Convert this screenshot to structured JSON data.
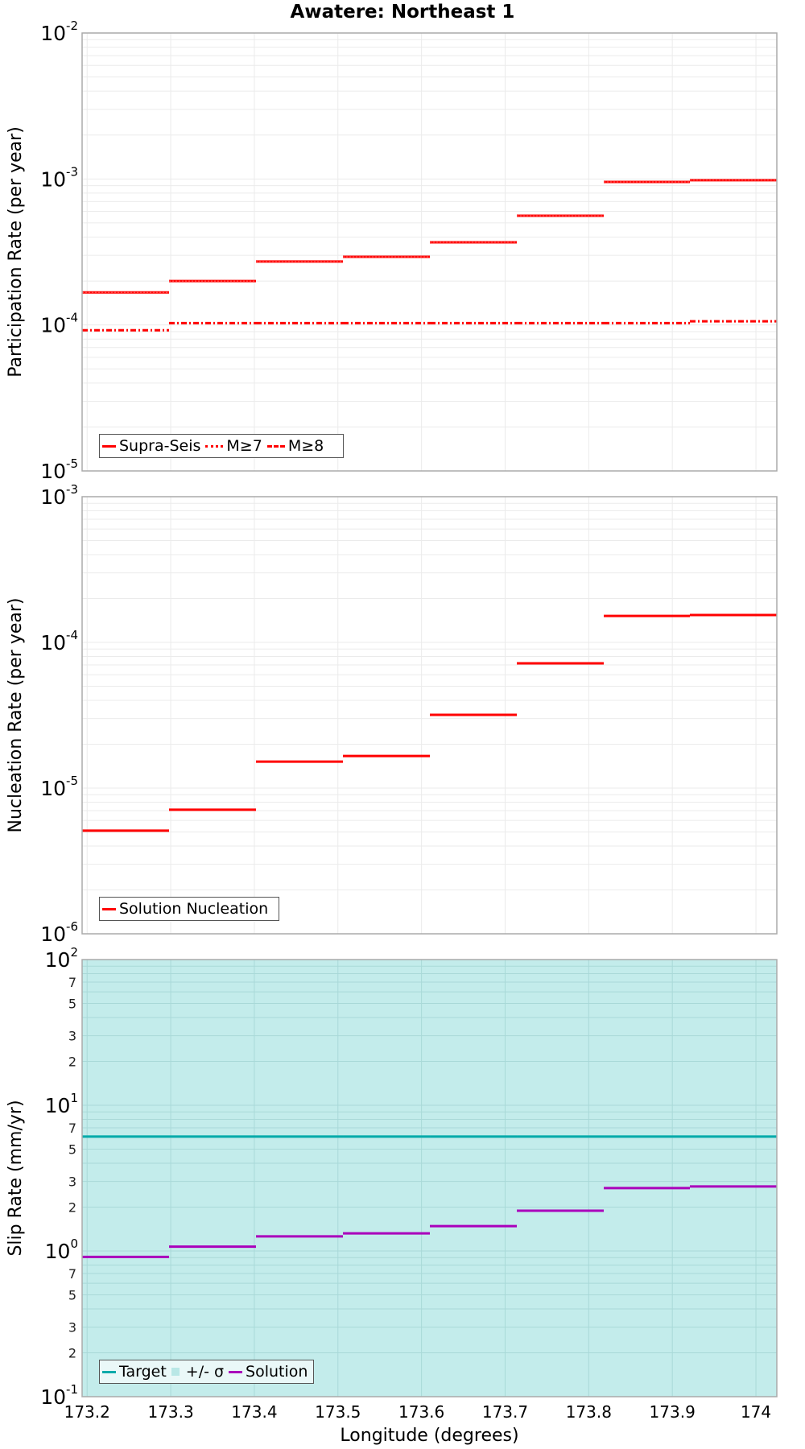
{
  "title": "Awatere: Northeast 1",
  "chart_data": [
    {
      "type": "line",
      "style": "step",
      "title": "Awatere: Northeast 1",
      "xlabel": "",
      "ylabel": "Participation Rate (per year)",
      "yscale": "log",
      "ylim": [
        1e-05,
        0.01
      ],
      "xlim": [
        173.194,
        174.025
      ],
      "grid": true,
      "legend_position": "lower left",
      "x_edges": [
        173.194,
        173.298,
        173.402,
        173.506,
        173.61,
        173.714,
        173.818,
        173.921,
        174.025
      ],
      "series": [
        {
          "name": "Supra-Seis",
          "color": "#ff0000",
          "dash": "solid",
          "values": [
            0.000167,
            0.0002,
            0.000272,
            0.000293,
            0.000368,
            0.00056,
            0.000955,
            0.00098
          ]
        },
        {
          "name": "M≥7",
          "color": "#ff0000",
          "dash": "dotted",
          "values": [
            0.000167,
            0.0002,
            0.000272,
            0.000293,
            0.000368,
            0.00056,
            0.000955,
            0.00098
          ]
        },
        {
          "name": "M≥8",
          "color": "#ff0000",
          "dash": "dashdot",
          "values": [
            9.2e-05,
            0.000103,
            0.000103,
            0.000103,
            0.000103,
            0.000103,
            0.000103,
            0.000106
          ]
        }
      ],
      "yticks": [
        "10^-2",
        "10^-3",
        "10^-4",
        "10^-5"
      ]
    },
    {
      "type": "line",
      "style": "step",
      "xlabel": "",
      "ylabel": "Nucleation Rate (per year)",
      "yscale": "log",
      "ylim": [
        1e-06,
        0.001
      ],
      "xlim": [
        173.194,
        174.025
      ],
      "grid": true,
      "legend_position": "lower left",
      "x_edges": [
        173.194,
        173.298,
        173.402,
        173.506,
        173.61,
        173.714,
        173.818,
        173.921,
        174.025
      ],
      "series": [
        {
          "name": "Solution Nucleation",
          "color": "#ff0000",
          "dash": "solid",
          "values": [
            5.1e-06,
            7.1e-06,
            1.52e-05,
            1.66e-05,
            3.18e-05,
            7.18e-05,
            0.000152,
            0.000154
          ]
        }
      ],
      "yticks": [
        "10^-3",
        "10^-4",
        "10^-5",
        "10^-6"
      ]
    },
    {
      "type": "line",
      "style": "step",
      "xlabel": "Longitude (degrees)",
      "ylabel": "Slip Rate (mm/yr)",
      "yscale": "log",
      "ylim": [
        0.1,
        100
      ],
      "xlim": [
        173.194,
        174.025
      ],
      "grid": true,
      "legend_position": "lower left",
      "background_fill": "#c3eceb",
      "x_edges": [
        173.194,
        173.298,
        173.402,
        173.506,
        173.61,
        173.714,
        173.818,
        173.921,
        174.025
      ],
      "series": [
        {
          "name": "Target",
          "color": "#00aaaa",
          "dash": "solid",
          "values": [
            6.1,
            6.1,
            6.1,
            6.1,
            6.1,
            6.1,
            6.1,
            6.1
          ]
        },
        {
          "name": "+/- σ",
          "color": "#b9e7e6",
          "type": "band",
          "lower": 0.1,
          "upper": 100
        },
        {
          "name": "Solution",
          "color": "#aa00bb",
          "dash": "solid",
          "values": [
            0.91,
            1.07,
            1.26,
            1.32,
            1.48,
            1.89,
            2.7,
            2.77
          ]
        }
      ],
      "yticks": [
        "10^2",
        "7",
        "5",
        "3",
        "2",
        "10^1",
        "7",
        "5",
        "3",
        "2",
        "10^0",
        "7",
        "5",
        "3",
        "2",
        "10^-1"
      ],
      "xticks": [
        "173.2",
        "173.3",
        "173.4",
        "173.5",
        "173.6",
        "173.7",
        "173.8",
        "173.9",
        "174"
      ]
    }
  ],
  "panels": [
    {
      "ylabel": "Participation Rate (per year)",
      "ymax_label": {
        "base": "10",
        "exp": "-2"
      },
      "decade_labels": [
        {
          "base": "10",
          "exp": "-2"
        },
        {
          "base": "10",
          "exp": "-3"
        },
        {
          "base": "10",
          "exp": "-4"
        },
        {
          "base": "10",
          "exp": "-5"
        }
      ],
      "legend": [
        {
          "label": "Supra-Seis"
        },
        {
          "label": "M≥7"
        },
        {
          "label": "M≥8"
        }
      ]
    },
    {
      "ylabel": "Nucleation Rate (per year)",
      "decade_labels": [
        {
          "base": "10",
          "exp": "-3"
        },
        {
          "base": "10",
          "exp": "-4"
        },
        {
          "base": "10",
          "exp": "-5"
        },
        {
          "base": "10",
          "exp": "-6"
        }
      ],
      "legend": [
        {
          "label": "Solution Nucleation"
        }
      ]
    },
    {
      "ylabel": "Slip Rate (mm/yr)",
      "decade_labels": [
        {
          "base": "10",
          "exp": "2"
        },
        {
          "base": "10",
          "exp": "1"
        },
        {
          "base": "10",
          "exp": "0"
        },
        {
          "base": "10",
          "exp": "-1"
        }
      ],
      "minor_labels": [
        "7",
        "5",
        "3",
        "2"
      ],
      "legend": [
        {
          "label": "Target"
        },
        {
          "label": "+/- σ"
        },
        {
          "label": "Solution"
        }
      ]
    }
  ],
  "xaxis": {
    "label": "Longitude (degrees)",
    "ticks": [
      "173.2",
      "173.3",
      "173.4",
      "173.5",
      "173.6",
      "173.7",
      "173.8",
      "173.9",
      "174"
    ]
  }
}
